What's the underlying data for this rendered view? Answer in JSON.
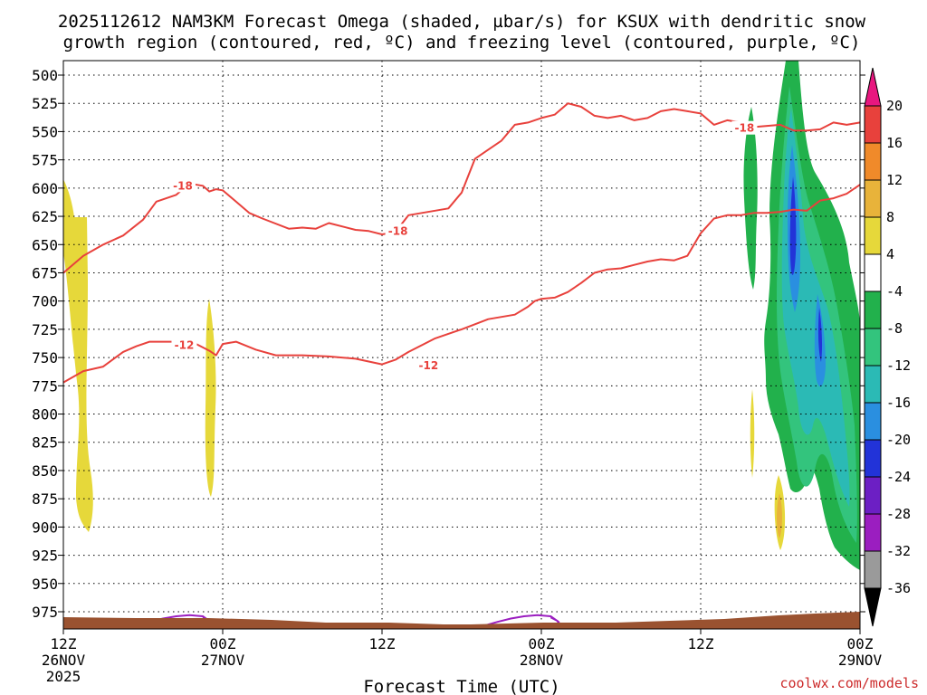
{
  "chart_data": {
    "type": "heatmap",
    "title_line1": "2025112612 NAM3KM Forecast Omega (shaded, µbar/s) for KSUX with dendritic snow",
    "title_line2": "growth region (contoured, red, ºC) and freezing level (contoured, purple, ºC)",
    "xlabel": "Forecast Time (UTC)",
    "credit": "coolwx.com/models",
    "x_range_hours": [
      0,
      60
    ],
    "y_axis_pressure_levels": [
      500,
      525,
      550,
      575,
      600,
      625,
      650,
      675,
      700,
      725,
      750,
      775,
      800,
      825,
      850,
      875,
      900,
      925,
      950,
      975
    ],
    "x_ticks": [
      {
        "hour": 0,
        "line1": "12Z",
        "line2": "26NOV",
        "line3": "2025"
      },
      {
        "hour": 12,
        "line1": "00Z",
        "line2": "27NOV",
        "line3": ""
      },
      {
        "hour": 24,
        "line1": "12Z",
        "line2": "",
        "line3": ""
      },
      {
        "hour": 36,
        "line1": "00Z",
        "line2": "28NOV",
        "line3": ""
      },
      {
        "hour": 48,
        "line1": "12Z",
        "line2": "",
        "line3": ""
      },
      {
        "hour": 60,
        "line1": "00Z",
        "line2": "29NOV",
        "line3": ""
      }
    ],
    "grid": true,
    "colorbar": {
      "labels": [
        "20",
        "16",
        "12",
        "8",
        "4",
        "-4",
        "-8",
        "-12",
        "-16",
        "-20",
        "-24",
        "-28",
        "-32",
        "-36"
      ],
      "colors": [
        "#e8177f",
        "#e8413c",
        "#f08a2a",
        "#e8b33a",
        "#e6d83a",
        "#ffffff",
        "#22b14c",
        "#33c47d",
        "#2bbab5",
        "#2a8fe0",
        "#2233d8",
        "#6c1fc4",
        "#9b1ec0",
        "#9a9a9a",
        "#000000"
      ]
    },
    "series": [
      {
        "name": "-18",
        "color": "#e8413c",
        "x": [
          0,
          1.5,
          3,
          4.5,
          6,
          7,
          8.5,
          9.5,
          10.5,
          11,
          11.5,
          12,
          13,
          14,
          15,
          17,
          18,
          19,
          20,
          22,
          23,
          24,
          25,
          26,
          27,
          28,
          29,
          30,
          31,
          32,
          33,
          34,
          35,
          36,
          37,
          38,
          39,
          40,
          41,
          42,
          43,
          44,
          45,
          46,
          47,
          48,
          49,
          50,
          51,
          52,
          54,
          55,
          56,
          57,
          58,
          59,
          60
        ],
        "y": [
          675,
          660,
          650,
          642,
          628,
          612,
          606,
          596,
          598,
          603,
          601,
          602,
          612,
          622,
          627,
          636,
          635,
          636,
          631,
          637,
          638,
          641,
          639,
          624,
          622,
          620,
          618,
          604,
          574,
          566,
          558,
          544,
          542,
          538,
          535,
          525,
          528,
          536,
          538,
          536,
          540,
          538,
          532,
          530,
          532,
          534,
          544,
          540,
          542,
          546,
          544,
          549,
          549,
          548,
          542,
          544,
          542
        ]
      },
      {
        "name": "-12",
        "color": "#e8413c",
        "x": [
          0,
          1.5,
          3,
          4.5,
          5.5,
          6.5,
          7,
          8.5,
          10,
          11,
          11.5,
          12,
          13,
          14.5,
          16,
          18,
          20,
          22,
          24,
          25,
          26,
          28,
          30,
          32,
          34,
          35,
          35.5,
          36,
          37,
          38,
          39,
          40,
          41,
          42,
          43,
          44,
          45,
          46,
          47,
          48,
          49,
          50,
          51,
          52,
          53,
          54,
          55,
          56,
          57,
          58,
          59,
          60
        ],
        "y": [
          772,
          762,
          758,
          745,
          740,
          736,
          736,
          736,
          738,
          744,
          748,
          738,
          736,
          743,
          748,
          748,
          749,
          751,
          756,
          752,
          745,
          733,
          725,
          716,
          712,
          705,
          700,
          698,
          697,
          692,
          684,
          675,
          672,
          671,
          668,
          665,
          663,
          664,
          660,
          640,
          627,
          624,
          624,
          622,
          622,
          621,
          619,
          620,
          611,
          609,
          605,
          597
        ]
      },
      {
        "name": "0",
        "color": "#9b1ec0",
        "x": [
          5.3,
          6.5,
          7.5,
          8.5,
          9.5,
          10.5,
          11.1,
          11.2,
          11,
          10.5
        ],
        "y": [
          988,
          984,
          981,
          979,
          978,
          979,
          984,
          987,
          983,
          980
        ]
      }
    ],
    "contour_labels": [
      "-18",
      "-18",
      "-18",
      "-12",
      "-12"
    ]
  }
}
